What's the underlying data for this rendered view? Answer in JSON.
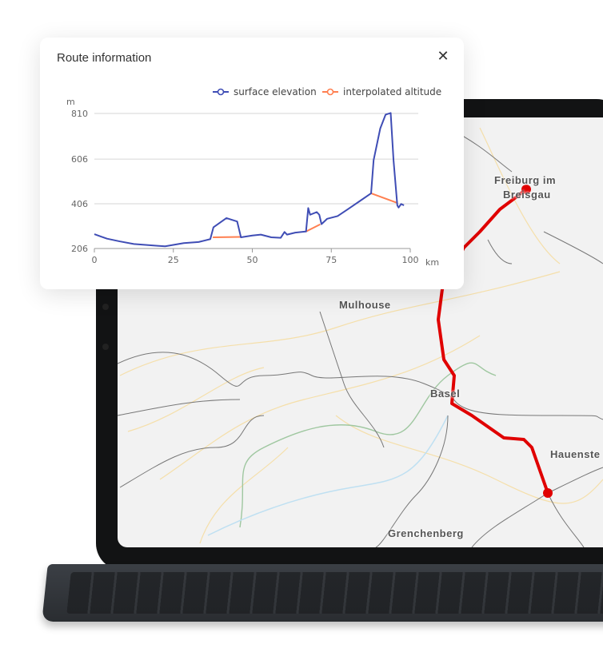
{
  "dialog": {
    "title": "Route information",
    "close_icon": "close-icon"
  },
  "map": {
    "labels": {
      "freiburg_1": "Freiburg im",
      "freiburg_2": "Breisgau",
      "mulhouse": "Mulhouse",
      "basel": "Basel",
      "hauenstein": "Hauenste",
      "grenchenberg": "Grenchenberg"
    },
    "route_color": "#e00000"
  },
  "chart_data": {
    "type": "line",
    "xlabel": "km",
    "ylabel": "m",
    "xlim": [
      0,
      100
    ],
    "ylim": [
      206,
      810
    ],
    "xticks": [
      "0",
      "25",
      "50",
      "75",
      "100"
    ],
    "yticks": [
      "206",
      "406",
      "606",
      "810"
    ],
    "grid": true,
    "legend": "top-right",
    "series": [
      {
        "name": "surface elevation",
        "color": "#3f4db5",
        "x": [
          0,
          4,
          8,
          12.5,
          20,
          22.4,
          28.3,
          33,
          36.7,
          37.7,
          41.8,
          45.2,
          46.4,
          50,
          52.7,
          56,
          59,
          60.2,
          61,
          63.6,
          67,
          67.7,
          68.3,
          70.4,
          71.2,
          71.9,
          73.7,
          77,
          80.4,
          83.8,
          87.6,
          88.4,
          90.5,
          92.2,
          93.8,
          94.7,
          95.9,
          96.3,
          97.1,
          98
        ],
        "y": [
          270,
          250,
          238,
          226,
          218,
          216,
          230,
          235,
          248,
          301,
          342,
          327,
          256,
          264,
          268,
          256,
          254,
          280,
          268,
          277,
          282,
          387,
          357,
          369,
          357,
          315,
          339,
          351,
          383,
          416,
          453,
          601,
          743,
          805,
          812,
          601,
          399,
          389,
          405,
          399
        ]
      },
      {
        "name": "interpolated altitude",
        "color": "#ff7f50",
        "segments": [
          [
            [
              37.5,
              256
            ],
            [
              46.3,
              258
            ]
          ],
          [
            [
              67,
              282
            ],
            [
              71.5,
              314
            ]
          ],
          [
            [
              87.6,
              453
            ],
            [
              95.7,
              411
            ]
          ]
        ]
      }
    ]
  }
}
